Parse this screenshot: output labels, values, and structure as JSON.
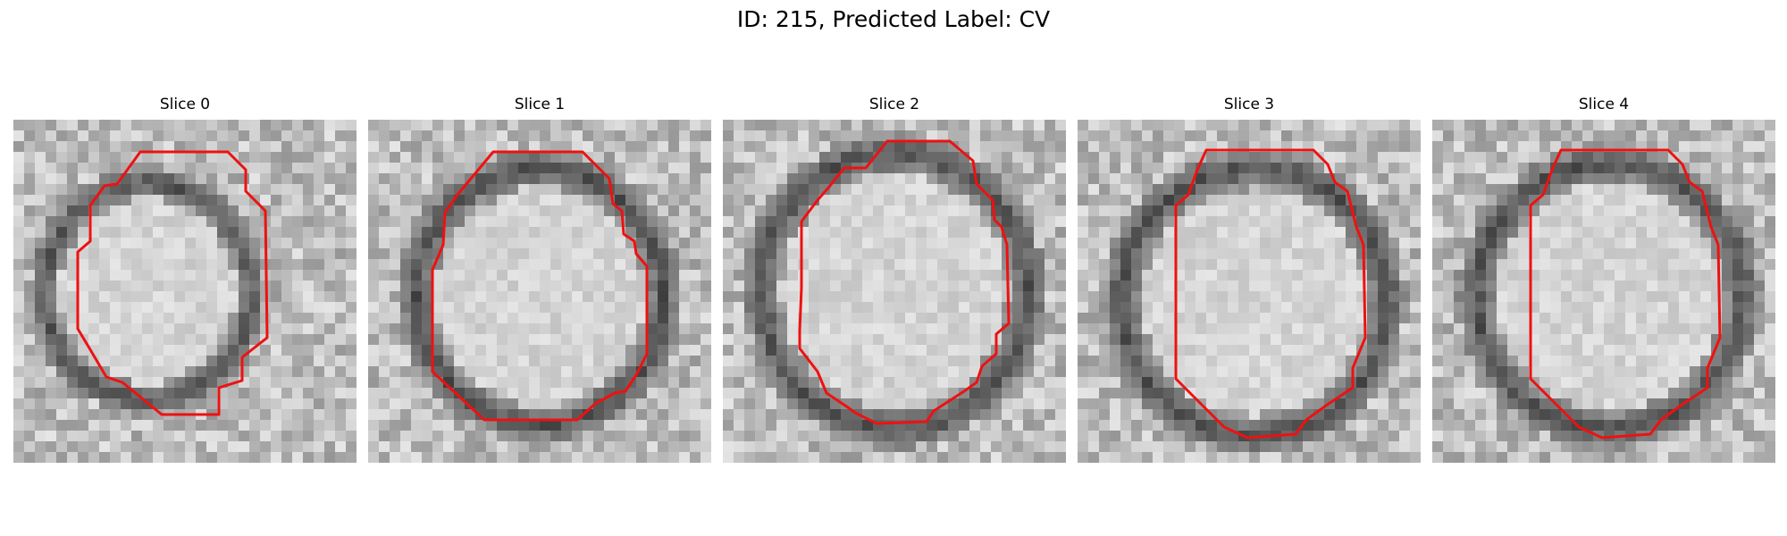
{
  "figure": {
    "title": "ID: 215, Predicted Label: CV"
  },
  "panels": [
    {
      "title": "Slice 0"
    },
    {
      "title": "Slice 1"
    },
    {
      "title": "Slice 2"
    },
    {
      "title": "Slice 3"
    },
    {
      "title": "Slice 4"
    }
  ],
  "colors": {
    "contour": "#ee1111",
    "background": "#ffffff"
  }
}
